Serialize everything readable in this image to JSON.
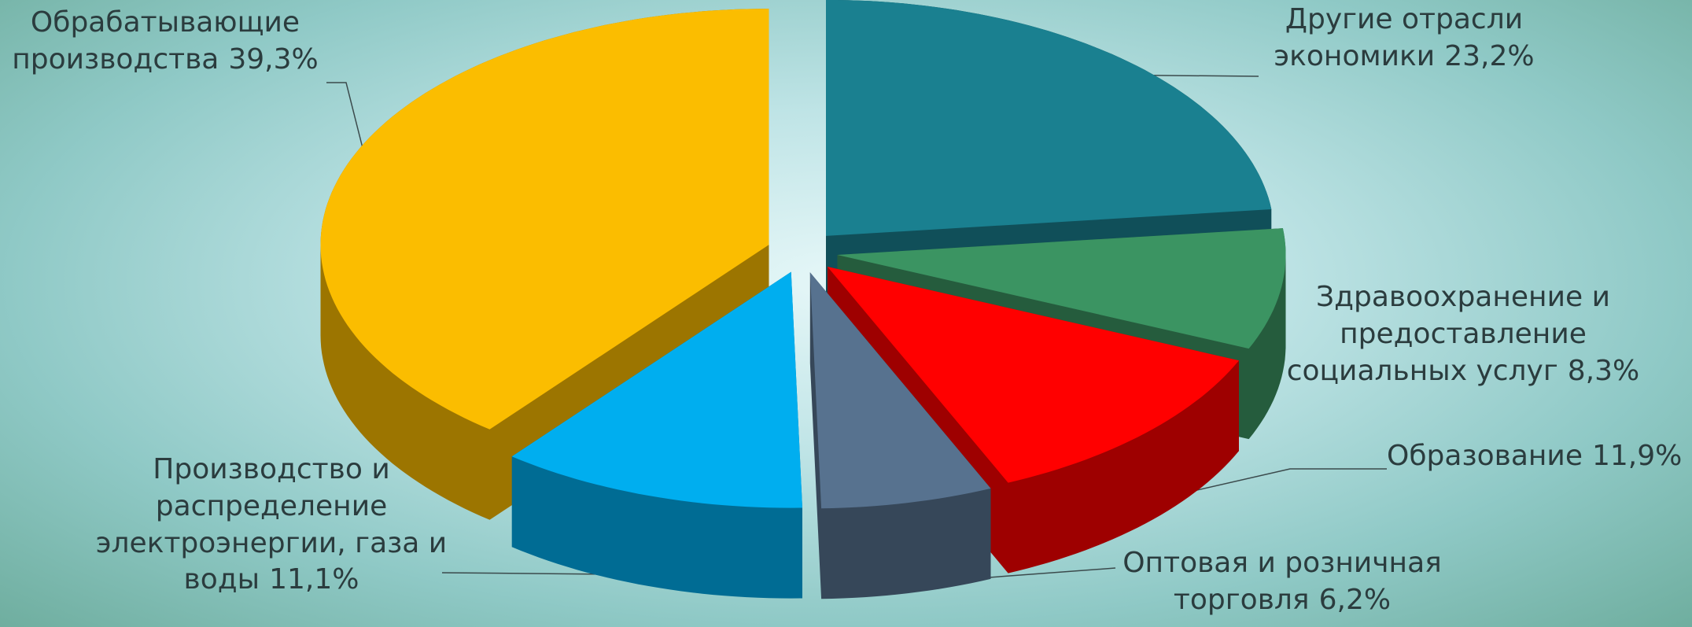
{
  "chart_data": {
    "type": "pie3d",
    "categories": [
      "Другие  отрасли экономики",
      "Здравоохранение  и предоставление социальных  услуг",
      "Образование",
      "Оптовая  и  розничная торговля",
      "Производство  и распределение электроэнергии, газа  и воды",
      "Обрабатывающие производства"
    ],
    "values": [
      23.2,
      8.3,
      11.9,
      6.2,
      11.1,
      39.3
    ],
    "value_labels": [
      "23,2%",
      "8,3%",
      "11,9%",
      "6,2%",
      "11,1%",
      "39,3%"
    ],
    "colors": [
      "#1a8090",
      "#3b9462",
      "#ff0000",
      "#57728f",
      "#00aeef",
      "#fbbd00"
    ]
  }
}
